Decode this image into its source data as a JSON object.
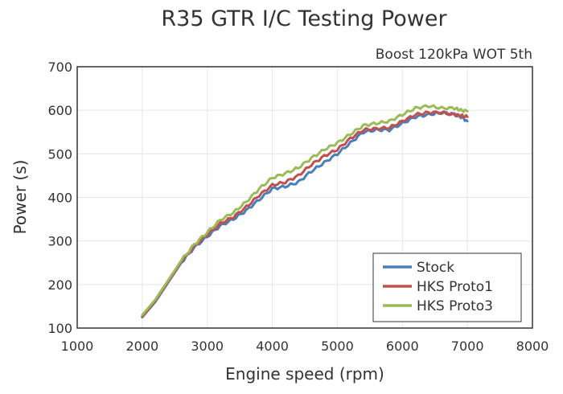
{
  "chart_data": {
    "type": "line",
    "title": "R35 GTR  I/C  Testing Power",
    "subtitle": "Boost 120kPa WOT 5th",
    "xlabel": "Engine speed (rpm)",
    "ylabel": "Power (s)",
    "xlim": [
      1000,
      8000
    ],
    "ylim": [
      100,
      700
    ],
    "xticks": [
      1000,
      2000,
      3000,
      4000,
      5000,
      6000,
      7000,
      8000
    ],
    "yticks": [
      100,
      200,
      300,
      400,
      500,
      600,
      700
    ],
    "grid": true,
    "legend_position": "bottom-right",
    "series": [
      {
        "name": "Stock",
        "color": "#4a7ebb",
        "x": [
          2000,
          2200,
          2400,
          2600,
          2800,
          3000,
          3200,
          3400,
          3600,
          3800,
          4000,
          4200,
          4400,
          4600,
          4800,
          5000,
          5200,
          5400,
          5600,
          5800,
          6000,
          6200,
          6400,
          6600,
          6800,
          6900,
          7000
        ],
        "y": [
          125,
          160,
          205,
          250,
          285,
          310,
          335,
          350,
          370,
          395,
          420,
          425,
          435,
          460,
          480,
          500,
          525,
          550,
          555,
          555,
          570,
          585,
          590,
          595,
          590,
          585,
          575
        ]
      },
      {
        "name": "HKS Proto1",
        "color": "#c0504d",
        "x": [
          2000,
          2200,
          2400,
          2600,
          2800,
          3000,
          3200,
          3400,
          3600,
          3800,
          4000,
          4200,
          4400,
          4600,
          4800,
          5000,
          5200,
          5400,
          5600,
          5800,
          6000,
          6200,
          6400,
          6600,
          6800,
          6900,
          7000
        ],
        "y": [
          127,
          162,
          207,
          252,
          288,
          315,
          340,
          355,
          378,
          405,
          428,
          435,
          450,
          475,
          495,
          510,
          535,
          555,
          558,
          560,
          575,
          590,
          595,
          595,
          590,
          588,
          585
        ]
      },
      {
        "name": "HKS Proto3",
        "color": "#9bbb59",
        "x": [
          2000,
          2200,
          2400,
          2600,
          2800,
          3000,
          3200,
          3400,
          3600,
          3800,
          4000,
          4200,
          4400,
          4600,
          4800,
          5000,
          5200,
          5400,
          5600,
          5800,
          6000,
          6200,
          6400,
          6600,
          6800,
          6900,
          7000
        ],
        "y": [
          130,
          165,
          210,
          255,
          292,
          320,
          348,
          365,
          390,
          420,
          445,
          455,
          468,
          490,
          510,
          525,
          545,
          565,
          570,
          575,
          590,
          605,
          610,
          605,
          605,
          600,
          598
        ]
      }
    ]
  }
}
